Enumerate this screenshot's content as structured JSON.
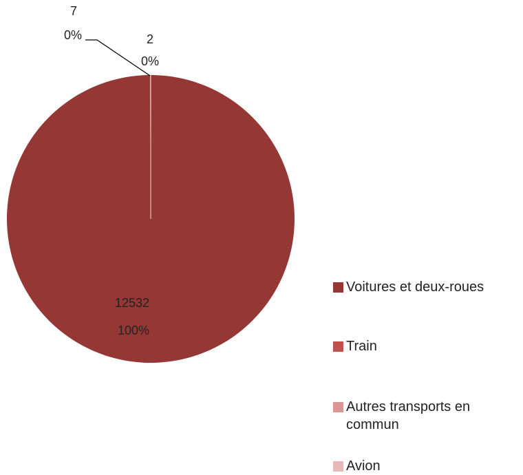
{
  "chart_data": {
    "type": "pie",
    "title": "",
    "slices": [
      {
        "name": "Voitures et deux-roues",
        "value": 12532,
        "value_label": "12532",
        "percent_label": "100%",
        "color": "#953735"
      },
      {
        "name": "Train",
        "value": 0,
        "value_label": "",
        "percent_label": "",
        "color": "#C0504D"
      },
      {
        "name": "Autres transports en commun",
        "value": 7,
        "value_label": "7",
        "percent_label": "0%",
        "color": "#D99694"
      },
      {
        "name": "Avion",
        "value": 2,
        "value_label": "2",
        "percent_label": "0%",
        "color": "#E6B9B8"
      }
    ],
    "legend": {
      "position": "right",
      "items": [
        {
          "label": "Voitures et deux-roues",
          "color": "#953735"
        },
        {
          "label": "Train",
          "color": "#C0504D"
        },
        {
          "label": "Autres transports en commun",
          "color": "#D99694"
        },
        {
          "label": "Avion",
          "color": "#E6B9B8"
        }
      ]
    }
  }
}
